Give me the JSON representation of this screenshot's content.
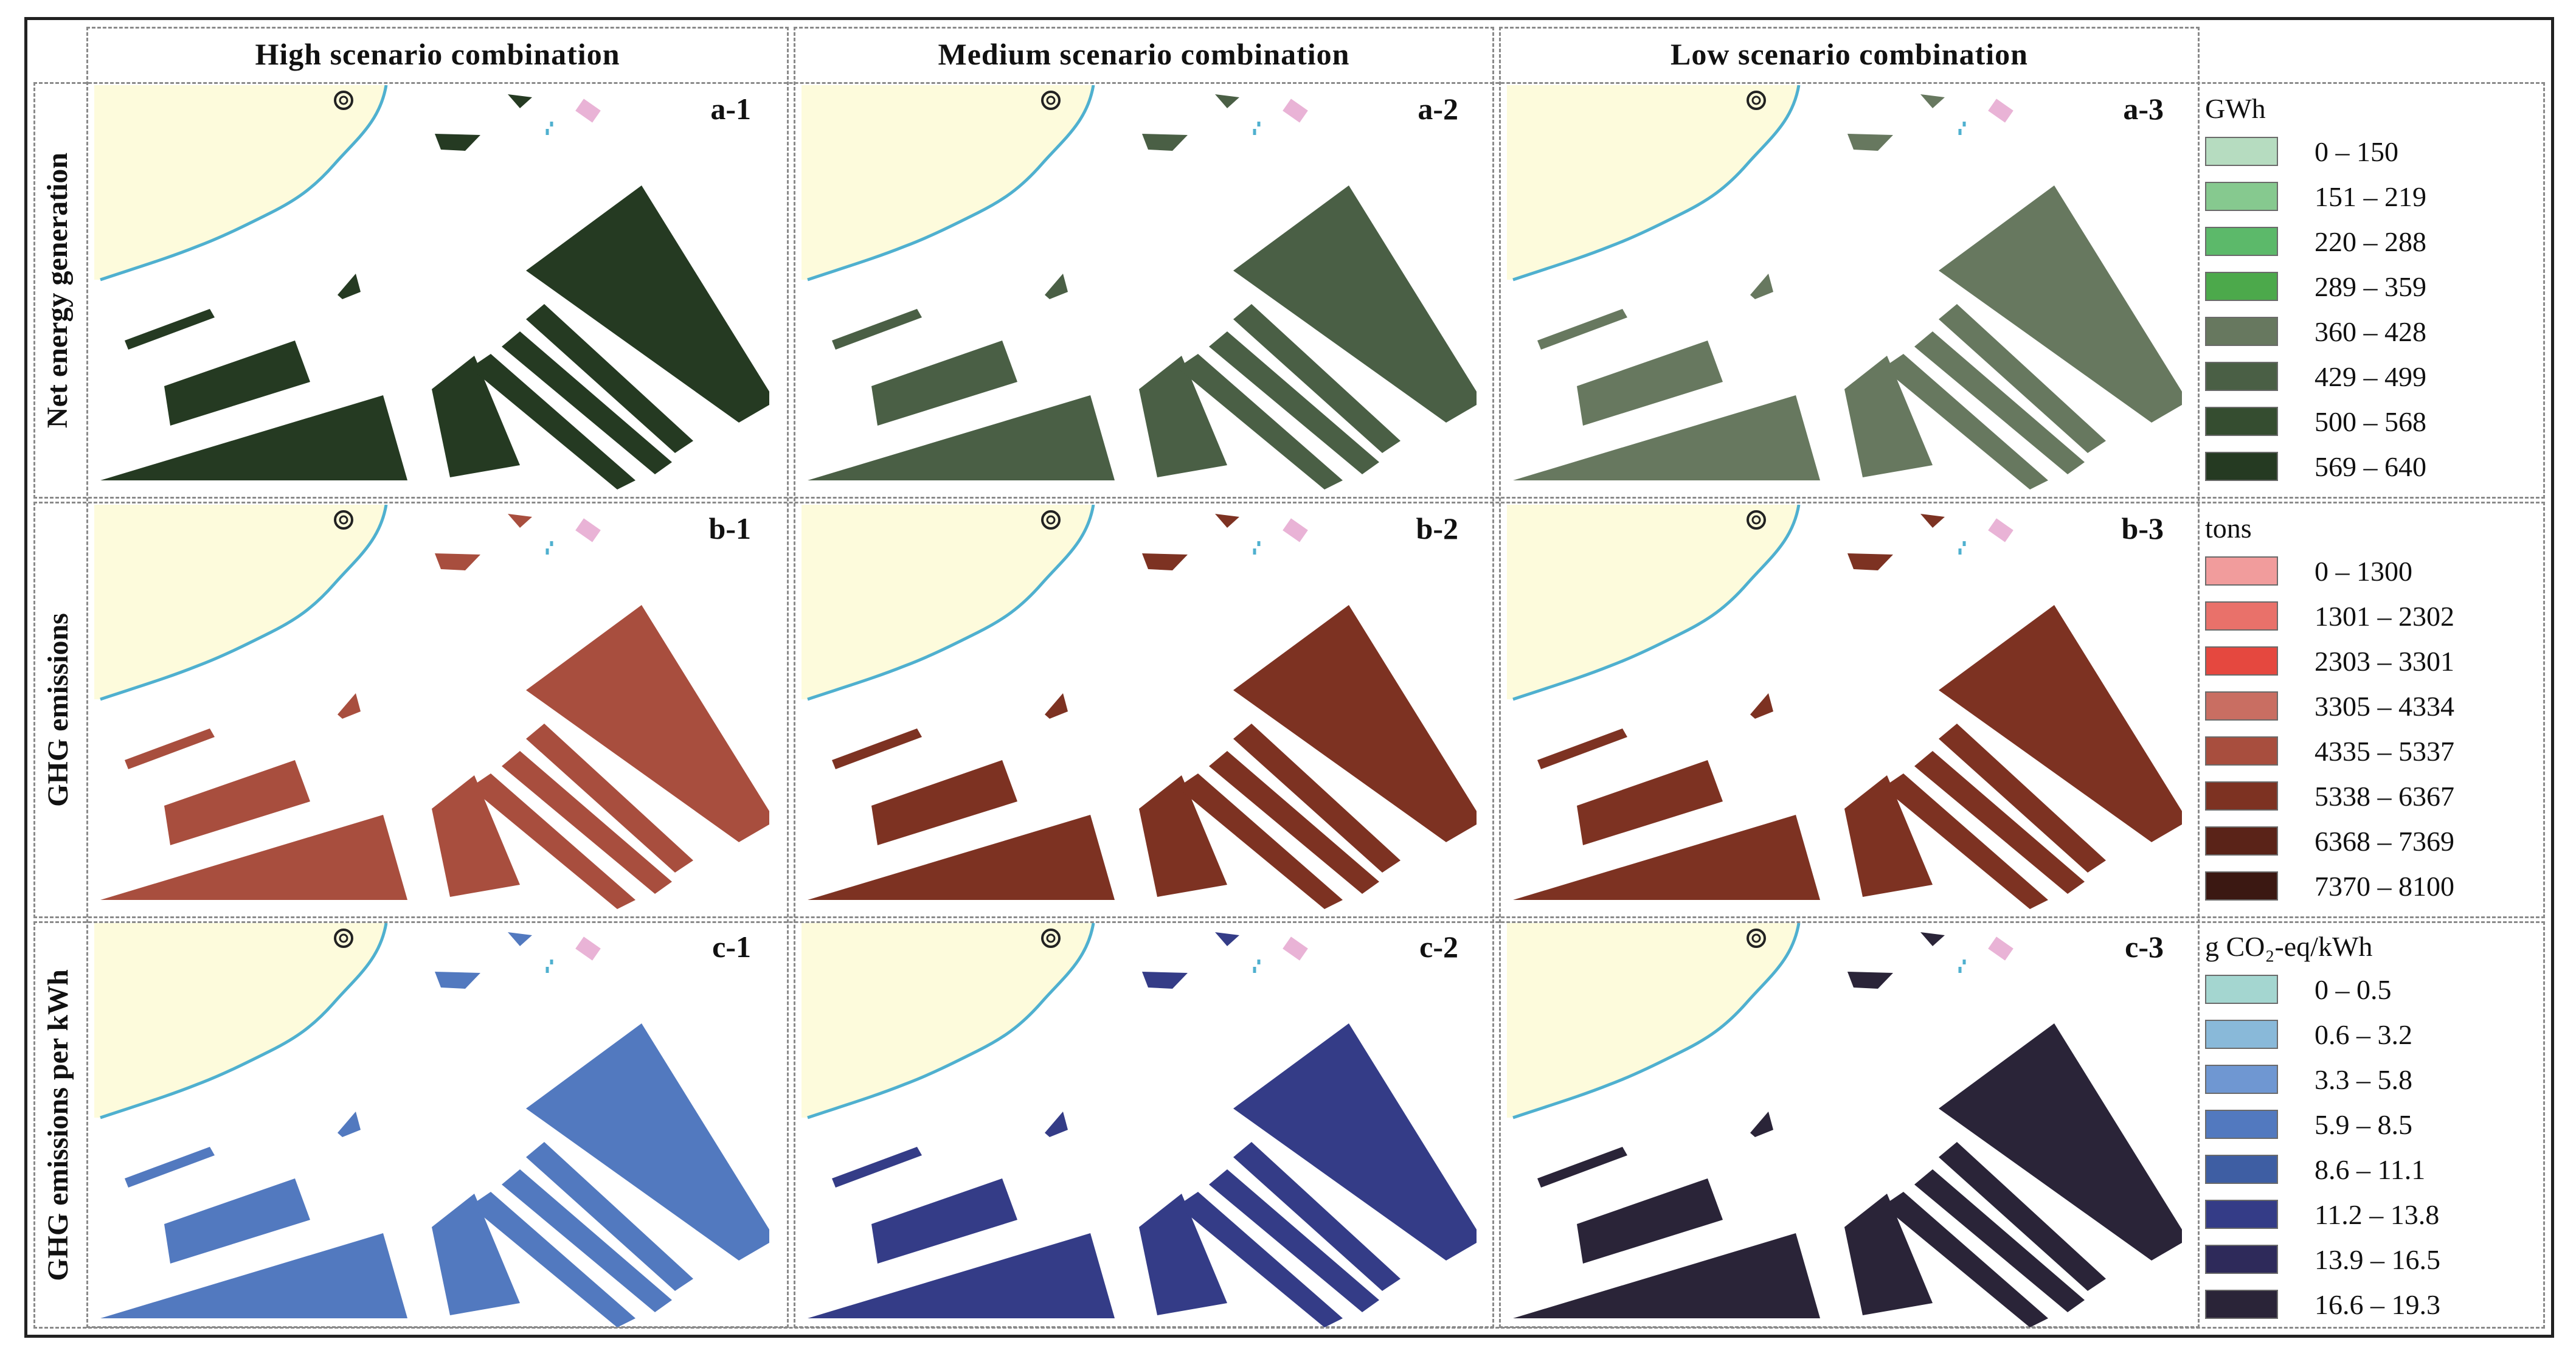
{
  "columns": [
    {
      "label": "High scenario combination"
    },
    {
      "label": "Medium scenario combination"
    },
    {
      "label": "Low scenario combination"
    }
  ],
  "rows": [
    {
      "label": "Net energy generation",
      "panels": [
        {
          "id": "a-1",
          "class_level": 7
        },
        {
          "id": "a-2",
          "class_level": 5
        },
        {
          "id": "a-3",
          "class_level": 4
        }
      ],
      "legend": {
        "unit": "GWh",
        "classes": [
          {
            "label": "0 – 150",
            "color": "#b6dcc0"
          },
          {
            "label": "151 – 219",
            "color": "#86c98f"
          },
          {
            "label": "220 – 288",
            "color": "#5cb96a"
          },
          {
            "label": "289 – 359",
            "color": "#4ca94b"
          },
          {
            "label": "360 – 428",
            "color": "#67785f"
          },
          {
            "label": "429 – 499",
            "color": "#4a5f45"
          },
          {
            "label": "500 – 568",
            "color": "#354d30"
          },
          {
            "label": "569 – 640",
            "color": "#253a22"
          }
        ]
      }
    },
    {
      "label": "GHG emissions",
      "panels": [
        {
          "id": "b-1",
          "class_level": 4
        },
        {
          "id": "b-2",
          "class_level": 5
        },
        {
          "id": "b-3",
          "class_level": 5
        }
      ],
      "legend": {
        "unit": "tons",
        "classes": [
          {
            "label": "0 – 1300",
            "color": "#f19c9c"
          },
          {
            "label": "1301 – 2302",
            "color": "#e9716a"
          },
          {
            "label": "2303 – 3301",
            "color": "#e5483f"
          },
          {
            "label": "3305 – 4334",
            "color": "#c96e62"
          },
          {
            "label": "4335 – 5337",
            "color": "#a84e3e"
          },
          {
            "label": "5338 – 6367",
            "color": "#7d3222"
          },
          {
            "label": "6368 – 7369",
            "color": "#5a2318"
          },
          {
            "label": "7370 – 8100",
            "color": "#3b1812"
          }
        ]
      }
    },
    {
      "label": "GHG emissions per kWh",
      "panels": [
        {
          "id": "c-1",
          "class_level": 3
        },
        {
          "id": "c-2",
          "class_level": 5
        },
        {
          "id": "c-3",
          "class_level": 7
        }
      ],
      "legend": {
        "unit": "g CO₂-eq/kWh",
        "classes": [
          {
            "label": "0 – 0.5",
            "color": "#a4d6d0"
          },
          {
            "label": "0.6 – 3.2",
            "color": "#89b9d9"
          },
          {
            "label": "3.3 – 5.8",
            "color": "#6f97d2"
          },
          {
            "label": "5.9 – 8.5",
            "color": "#5279bf"
          },
          {
            "label": "8.6 – 11.1",
            "color": "#3e5ea3"
          },
          {
            "label": "11.2 – 13.8",
            "color": "#343c87"
          },
          {
            "label": "13.9 – 16.5",
            "color": "#2e2a5a"
          },
          {
            "label": "16.6 – 19.3",
            "color": "#2a2438"
          }
        ]
      }
    }
  ],
  "map_colors": {
    "land": "#fdfbdc",
    "coast": "#4fb0cf",
    "marker": "#e9b3d6"
  }
}
